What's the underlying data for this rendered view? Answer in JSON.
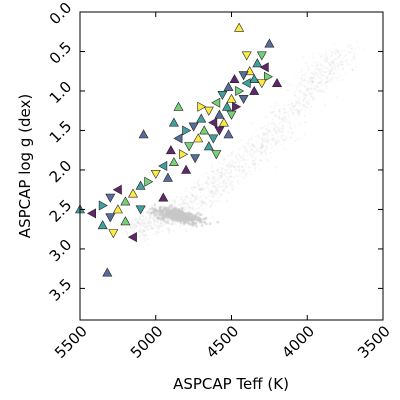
{
  "chart_data": {
    "type": "scatter",
    "title": "",
    "xlabel": "ASPCAP Teff (K)",
    "ylabel": "ASPCAP log g (dex)",
    "xlim": [
      5500,
      3500
    ],
    "ylim": [
      3.9,
      0.0
    ],
    "xticks": [
      5500,
      5000,
      4500,
      4000,
      3500
    ],
    "yticks": [
      0.0,
      0.5,
      1.0,
      1.5,
      2.0,
      2.5,
      3.0,
      3.5
    ],
    "xtick_labels": [
      "5500",
      "5000",
      "4500",
      "4000",
      "3500"
    ],
    "ytick_labels": [
      "0.0",
      "0.5",
      "1.0",
      "1.5",
      "2.0",
      "2.5",
      "3.0",
      "3.5"
    ],
    "grid": false,
    "legend": "none",
    "colormap": [
      "#440154",
      "#3b528b",
      "#21918c",
      "#5ec962",
      "#fde725"
    ],
    "background_color": "#c8c8c8",
    "background_sequence": {
      "description_points": [
        {
          "teff": 5150,
          "logg": 2.75
        },
        {
          "teff": 4900,
          "logg": 2.6
        },
        {
          "teff": 4600,
          "logg": 2.2
        },
        {
          "teff": 4300,
          "logg": 1.7
        },
        {
          "teff": 4000,
          "logg": 1.0
        },
        {
          "teff": 3750,
          "logg": 0.5
        }
      ]
    },
    "series": [
      {
        "marker_types": [
          "^",
          "v",
          "<",
          ">"
        ],
        "points": [
          {
            "teff": 4450,
            "logg": 0.2,
            "m": "^",
            "c": 4
          },
          {
            "teff": 4250,
            "logg": 0.4,
            "m": "^",
            "c": 1
          },
          {
            "teff": 4300,
            "logg": 0.55,
            "m": "v",
            "c": 3
          },
          {
            "teff": 4330,
            "logg": 0.65,
            "m": "^",
            "c": 2
          },
          {
            "teff": 4280,
            "logg": 0.7,
            "m": "<",
            "c": 0
          },
          {
            "teff": 4380,
            "logg": 0.75,
            "m": "^",
            "c": 4
          },
          {
            "teff": 4420,
            "logg": 0.8,
            "m": "v",
            "c": 1
          },
          {
            "teff": 4260,
            "logg": 0.82,
            "m": ">",
            "c": 3
          },
          {
            "teff": 4350,
            "logg": 0.85,
            "m": "^",
            "c": 2
          },
          {
            "teff": 4480,
            "logg": 0.85,
            "m": "^",
            "c": 0
          },
          {
            "teff": 4300,
            "logg": 0.9,
            "m": "v",
            "c": 4
          },
          {
            "teff": 4400,
            "logg": 0.9,
            "m": "<",
            "c": 2
          },
          {
            "teff": 4520,
            "logg": 0.95,
            "m": "^",
            "c": 1
          },
          {
            "teff": 4450,
            "logg": 1.0,
            "m": ">",
            "c": 3
          },
          {
            "teff": 4350,
            "logg": 1.0,
            "m": "^",
            "c": 0
          },
          {
            "teff": 4560,
            "logg": 1.05,
            "m": "v",
            "c": 2
          },
          {
            "teff": 4500,
            "logg": 1.1,
            "m": "^",
            "c": 4
          },
          {
            "teff": 4420,
            "logg": 1.1,
            "m": "v",
            "c": 1
          },
          {
            "teff": 4600,
            "logg": 1.15,
            "m": "<",
            "c": 3
          },
          {
            "teff": 4530,
            "logg": 1.2,
            "m": "^",
            "c": 2
          },
          {
            "teff": 4470,
            "logg": 1.2,
            "m": ">",
            "c": 0
          },
          {
            "teff": 4650,
            "logg": 1.25,
            "m": "v",
            "c": 4
          },
          {
            "teff": 4580,
            "logg": 1.3,
            "m": "^",
            "c": 1
          },
          {
            "teff": 4500,
            "logg": 1.3,
            "m": "v",
            "c": 3
          },
          {
            "teff": 4700,
            "logg": 1.35,
            "m": "^",
            "c": 2
          },
          {
            "teff": 4620,
            "logg": 1.4,
            "m": "<",
            "c": 0
          },
          {
            "teff": 4550,
            "logg": 1.4,
            "m": "^",
            "c": 4
          },
          {
            "teff": 4750,
            "logg": 1.45,
            "m": "v",
            "c": 1
          },
          {
            "teff": 4680,
            "logg": 1.5,
            "m": "^",
            "c": 3
          },
          {
            "teff": 4800,
            "logg": 1.5,
            "m": ">",
            "c": 2
          },
          {
            "teff": 4580,
            "logg": 1.5,
            "m": "v",
            "c": 0
          },
          {
            "teff": 4720,
            "logg": 1.6,
            "m": "^",
            "c": 4
          },
          {
            "teff": 4850,
            "logg": 1.6,
            "m": "<",
            "c": 1
          },
          {
            "teff": 4780,
            "logg": 1.7,
            "m": "v",
            "c": 3
          },
          {
            "teff": 4650,
            "logg": 1.7,
            "m": "^",
            "c": 2
          },
          {
            "teff": 4900,
            "logg": 1.75,
            "m": "^",
            "c": 0
          },
          {
            "teff": 4820,
            "logg": 1.8,
            "m": ">",
            "c": 4
          },
          {
            "teff": 4740,
            "logg": 1.85,
            "m": "v",
            "c": 1
          },
          {
            "teff": 4880,
            "logg": 1.9,
            "m": "^",
            "c": 3
          },
          {
            "teff": 4950,
            "logg": 1.95,
            "m": "<",
            "c": 2
          },
          {
            "teff": 4800,
            "logg": 2.0,
            "m": "^",
            "c": 0
          },
          {
            "teff": 5000,
            "logg": 2.05,
            "m": "v",
            "c": 4
          },
          {
            "teff": 4920,
            "logg": 2.1,
            "m": "^",
            "c": 1
          },
          {
            "teff": 5050,
            "logg": 2.15,
            "m": ">",
            "c": 3
          },
          {
            "teff": 5100,
            "logg": 2.2,
            "m": "^",
            "c": 2
          },
          {
            "teff": 5250,
            "logg": 2.25,
            "m": "<",
            "c": 0
          },
          {
            "teff": 5150,
            "logg": 2.3,
            "m": "^",
            "c": 4
          },
          {
            "teff": 5300,
            "logg": 2.35,
            "m": "v",
            "c": 1
          },
          {
            "teff": 5200,
            "logg": 2.4,
            "m": "^",
            "c": 3
          },
          {
            "teff": 5350,
            "logg": 2.45,
            "m": ">",
            "c": 2
          },
          {
            "teff": 5250,
            "logg": 2.5,
            "m": "^",
            "c": 4
          },
          {
            "teff": 5420,
            "logg": 2.55,
            "m": "<",
            "c": 0
          },
          {
            "teff": 5300,
            "logg": 2.6,
            "m": "v",
            "c": 1
          },
          {
            "teff": 5200,
            "logg": 2.65,
            "m": "^",
            "c": 3
          },
          {
            "teff": 5350,
            "logg": 2.7,
            "m": "^",
            "c": 2
          },
          {
            "teff": 5280,
            "logg": 2.8,
            "m": "v",
            "c": 4
          },
          {
            "teff": 5150,
            "logg": 2.85,
            "m": "<",
            "c": 0
          },
          {
            "teff": 5320,
            "logg": 3.3,
            "m": "^",
            "c": 1
          },
          {
            "teff": 5500,
            "logg": 2.5,
            "m": "^",
            "c": 2
          },
          {
            "teff": 5080,
            "logg": 1.55,
            "m": "^",
            "c": 1
          },
          {
            "teff": 4600,
            "logg": 1.8,
            "m": "v",
            "c": 3
          },
          {
            "teff": 4880,
            "logg": 1.4,
            "m": "^",
            "c": 2
          },
          {
            "teff": 4700,
            "logg": 1.2,
            "m": ">",
            "c": 4
          },
          {
            "teff": 4950,
            "logg": 2.35,
            "m": "^",
            "c": 0
          },
          {
            "teff": 5100,
            "logg": 2.5,
            "m": "v",
            "c": 2
          },
          {
            "teff": 4850,
            "logg": 1.2,
            "m": "^",
            "c": 3
          },
          {
            "teff": 4400,
            "logg": 0.55,
            "m": "v",
            "c": 4
          },
          {
            "teff": 4200,
            "logg": 0.9,
            "m": "^",
            "c": 0
          },
          {
            "teff": 4620,
            "logg": 1.6,
            "m": "v",
            "c": 2
          },
          {
            "teff": 4520,
            "logg": 1.55,
            "m": "^",
            "c": 1
          }
        ]
      }
    ]
  }
}
